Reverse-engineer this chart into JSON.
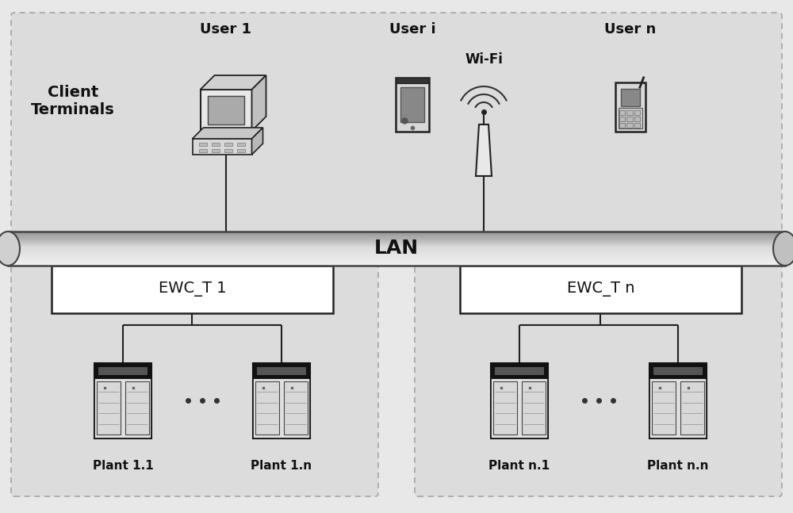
{
  "bg_color": "#e8e8e8",
  "client_box_bg": "#e0e0e0",
  "ewc_box_bg": "#e4e4e4",
  "lan_label": "LAN",
  "client_label": "Client\nTerminals",
  "user1_label": "User 1",
  "useri_label": "User i",
  "usern_label": "User n",
  "wifi_label": "Wi-Fi",
  "ewc1_label": "EWC_T 1",
  "ewcn_label": "EWC_T n",
  "plant11_label": "Plant 1.1",
  "plant1n_label": "Plant 1.n",
  "plantn1_label": "Plant n.1",
  "plantnn_label": "Plant n.n",
  "line_color": "#222222",
  "text_color": "#111111",
  "dashed_color": "#aaaaaa",
  "lan_grad_top": "#e0e0e0",
  "lan_grad_mid": "#b8b8b8",
  "lan_grad_bot": "#808080",
  "plant_dark": "#1a1a1a",
  "plant_light": "#cccccc",
  "plant_white": "#e8e8e8"
}
